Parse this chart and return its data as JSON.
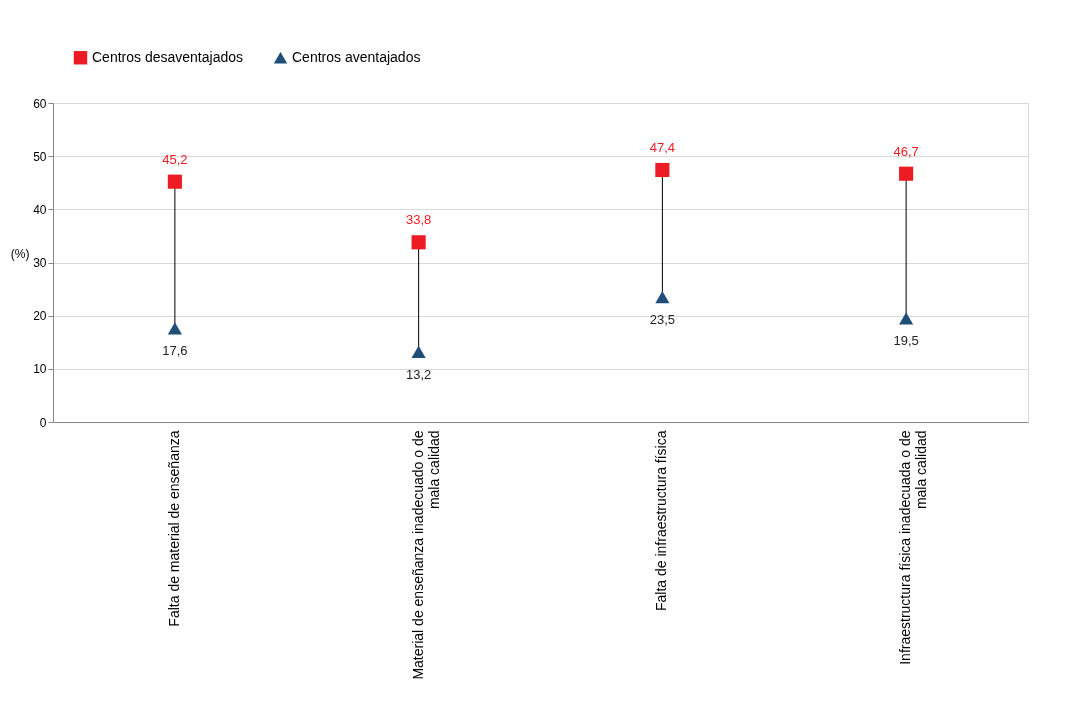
{
  "chart_data": {
    "type": "scatter",
    "ylabel": "(%)",
    "categories": [
      "Falta de material de enseñanza",
      "Material de enseñanza inadecuado o de mala calidad",
      "Falta de infraestructura física",
      "Infraestructura física inadecuada o de mala calidad"
    ],
    "series": [
      {
        "name": "Centros desaventajados",
        "color": "#ed1c24",
        "marker": "square",
        "values": [
          45.2,
          33.8,
          47.4,
          46.7
        ],
        "value_labels": [
          "45,2",
          "33,8",
          "47,4",
          "46,7"
        ]
      },
      {
        "name": "Centros aventajados",
        "color": "#1f4e79",
        "marker": "triangle",
        "values": [
          17.6,
          13.2,
          23.5,
          19.5
        ],
        "value_labels": [
          "17,6",
          "13,2",
          "23,5",
          "19,5"
        ]
      }
    ],
    "ylim": [
      0,
      60
    ],
    "yticks": [
      0,
      10,
      20,
      30,
      40,
      50,
      60
    ],
    "grid": "y",
    "legend": "top"
  }
}
